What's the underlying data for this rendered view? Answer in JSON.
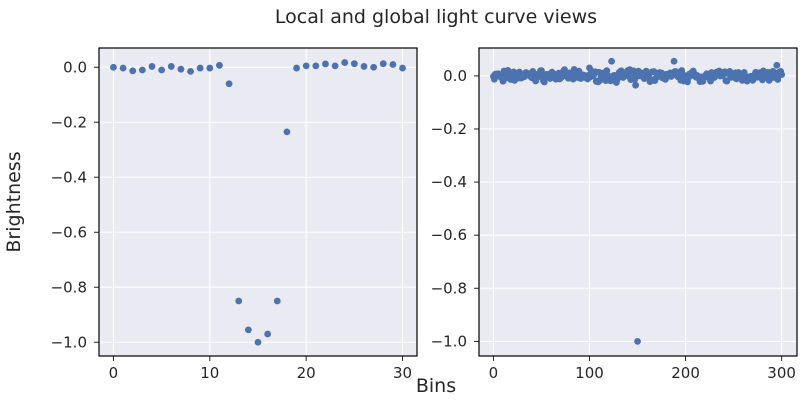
{
  "title": "Local and global light curve views",
  "xlabel": "Bins",
  "ylabel": "Brightness",
  "colors": {
    "marker": "#4c72b0",
    "plot_bg": "#eaeaf2",
    "grid": "#ffffff"
  },
  "chart_data": [
    {
      "type": "scatter",
      "name": "local-view",
      "xlim": [
        -1.5,
        31.5
      ],
      "ylim": [
        -1.05,
        0.07
      ],
      "xticks": [
        0,
        10,
        20,
        30
      ],
      "yticks": [
        0.0,
        -0.2,
        -0.4,
        -0.6,
        -0.8,
        -1.0
      ],
      "xtick_labels": [
        "0",
        "10",
        "20",
        "30"
      ],
      "ytick_labels": [
        "0.0",
        "−0.2",
        "−0.4",
        "−0.6",
        "−0.8",
        "−1.0"
      ],
      "grid": true,
      "x": [
        0,
        1,
        2,
        3,
        4,
        5,
        6,
        7,
        8,
        9,
        10,
        11,
        12,
        13,
        14,
        15,
        16,
        17,
        18,
        19,
        20,
        21,
        22,
        23,
        24,
        25,
        26,
        27,
        28,
        29,
        30
      ],
      "y": [
        0.0,
        -0.003,
        -0.013,
        -0.01,
        0.003,
        -0.01,
        0.003,
        -0.007,
        -0.015,
        -0.003,
        -0.003,
        0.007,
        -0.06,
        -0.85,
        -0.955,
        -1.0,
        -0.97,
        -0.85,
        -0.235,
        -0.003,
        0.005,
        0.005,
        0.012,
        0.005,
        0.017,
        0.013,
        0.003,
        0.0,
        0.013,
        0.01,
        -0.003
      ]
    },
    {
      "type": "scatter",
      "name": "global-view",
      "xlim": [
        -15,
        316
      ],
      "ylim": [
        -1.055,
        0.105
      ],
      "xticks": [
        0,
        100,
        200,
        300
      ],
      "yticks": [
        0.0,
        -0.2,
        -0.4,
        -0.6,
        -0.8,
        -1.0
      ],
      "xtick_labels": [
        "0",
        "100",
        "200",
        "300"
      ],
      "ytick_labels": [
        "0.0",
        "−0.2",
        "−0.4",
        "−0.6",
        "−0.8",
        "−1.0"
      ],
      "grid": true,
      "noise_band": {
        "x_start": 0,
        "x_end": 300,
        "y_low": -0.025,
        "y_high": 0.025
      },
      "outliers": {
        "x": [
          150,
          123,
          188,
          295,
          100,
          10,
          148
        ],
        "y": [
          -1.0,
          0.055,
          0.055,
          0.04,
          0.03,
          -0.02,
          -0.035
        ]
      }
    }
  ]
}
